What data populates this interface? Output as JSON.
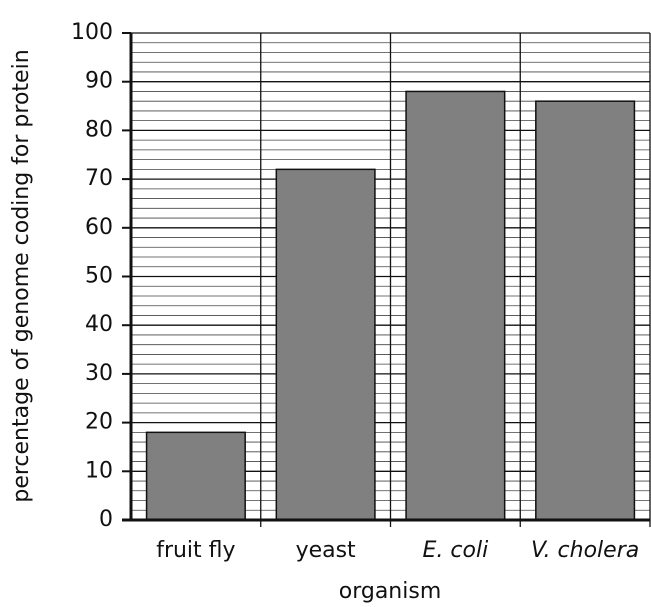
{
  "chart_data": {
    "type": "bar",
    "xlabel": "organism",
    "ylabel": "percentage of genome coding for protein",
    "categories": [
      "fruit fly",
      "yeast",
      "E. coli",
      "V. cholera"
    ],
    "category_styles": [
      "normal",
      "normal",
      "italic",
      "italic"
    ],
    "values": [
      18,
      72,
      88,
      86
    ],
    "color": "#808080",
    "ylim": [
      0,
      100
    ],
    "yticks": [
      0,
      10,
      20,
      30,
      40,
      50,
      60,
      70,
      80,
      90,
      100
    ],
    "grid": true
  }
}
